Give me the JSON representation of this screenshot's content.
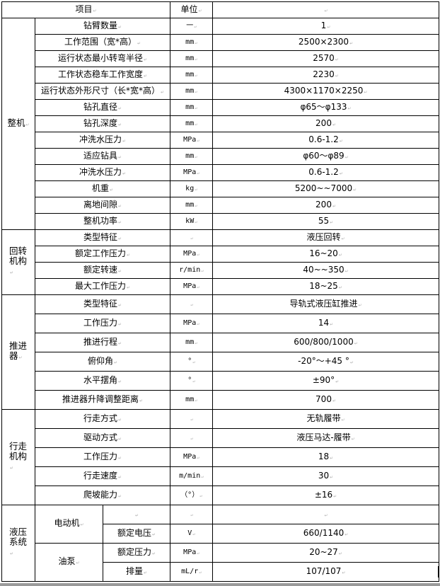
{
  "header": {
    "item": "项目",
    "unit": "单位",
    "value": ""
  },
  "sections": [
    {
      "label": "整机",
      "rows": [
        {
          "item": "钻臂数量",
          "unit": "一",
          "value": "1"
        },
        {
          "item": "工作范围（宽*高）",
          "unit": "mm",
          "value": "2500×2300"
        },
        {
          "item": "运行状态最小转弯半径",
          "unit": "mm",
          "value": "2570"
        },
        {
          "item": "工作状态稳车工作宽度",
          "unit": "mm",
          "value": "2230"
        },
        {
          "item": "运行状态外形尺寸（长*宽*高）",
          "unit": "mm",
          "value": "4300×1170×2250"
        },
        {
          "item": "钻孔直径",
          "unit": "mm",
          "value": "φ65～φ133"
        },
        {
          "item": "钻孔深度",
          "unit": "mm",
          "value": "200"
        },
        {
          "item": "冲洗水压力",
          "unit": "MPa",
          "value": "0.6-1.2"
        },
        {
          "item": "适应钻具",
          "unit": "mm",
          "value": "φ60～φ89"
        },
        {
          "item": "冲洗水压力",
          "unit": "MPa",
          "value": "0.6-1.2"
        },
        {
          "item": "机重",
          "unit": "kg",
          "value": "5200~~7000"
        },
        {
          "item": "离地间隙",
          "unit": "mm",
          "value": "200"
        },
        {
          "item": "整机功率",
          "unit": "kW",
          "value": "55"
        }
      ]
    },
    {
      "label": "回转机构",
      "rows": [
        {
          "item": "类型特征",
          "unit": "",
          "value": "液压回转"
        },
        {
          "item": "额定工作压力",
          "unit": "MPa",
          "value": "16~20"
        },
        {
          "item": "额定转速",
          "unit": "r/min",
          "value": "40~~350"
        },
        {
          "item": "最大工作压力",
          "unit": "MPa",
          "value": "18~25"
        }
      ]
    },
    {
      "label": "推进器",
      "rows": [
        {
          "item": "类型特征",
          "unit": "",
          "value": "导轨式液压缸推进"
        },
        {
          "item": "工作压力",
          "unit": "MPa",
          "value": "14"
        },
        {
          "item": "推进行程",
          "unit": "mm",
          "value": "600/800/1000"
        },
        {
          "item": "俯仰角",
          "unit": "°",
          "value": "-20°～+45 °"
        },
        {
          "item": "水平摆角",
          "unit": "°",
          "value": "±90°"
        },
        {
          "item": "推进器升降调整距离",
          "unit": "mm",
          "value": "700"
        }
      ]
    },
    {
      "label": "行走机构",
      "rows": [
        {
          "item": "行走方式",
          "unit": "",
          "value": "无轨履带"
        },
        {
          "item": "驱动方式",
          "unit": "",
          "value": "液压马达-履带"
        },
        {
          "item": "工作压力",
          "unit": "MPa",
          "value": "18"
        },
        {
          "item": "行走速度",
          "unit": "m/min",
          "value": "30"
        },
        {
          "item": "爬坡能力",
          "unit": "（°）",
          "value": "±16"
        }
      ]
    },
    {
      "label": "液压系统",
      "groups": [
        {
          "label": "电动机",
          "rows": [
            {
              "item": "",
              "unit": "",
              "value": ""
            },
            {
              "item": "额定电压",
              "unit": "V",
              "value": "660/1140"
            }
          ]
        },
        {
          "label": "油泵",
          "rows": [
            {
              "item": "额定压力",
              "unit": "MPa",
              "value": "20~27"
            },
            {
              "item": "排量",
              "unit": "mL/r",
              "value": "107/107"
            }
          ]
        }
      ]
    }
  ]
}
